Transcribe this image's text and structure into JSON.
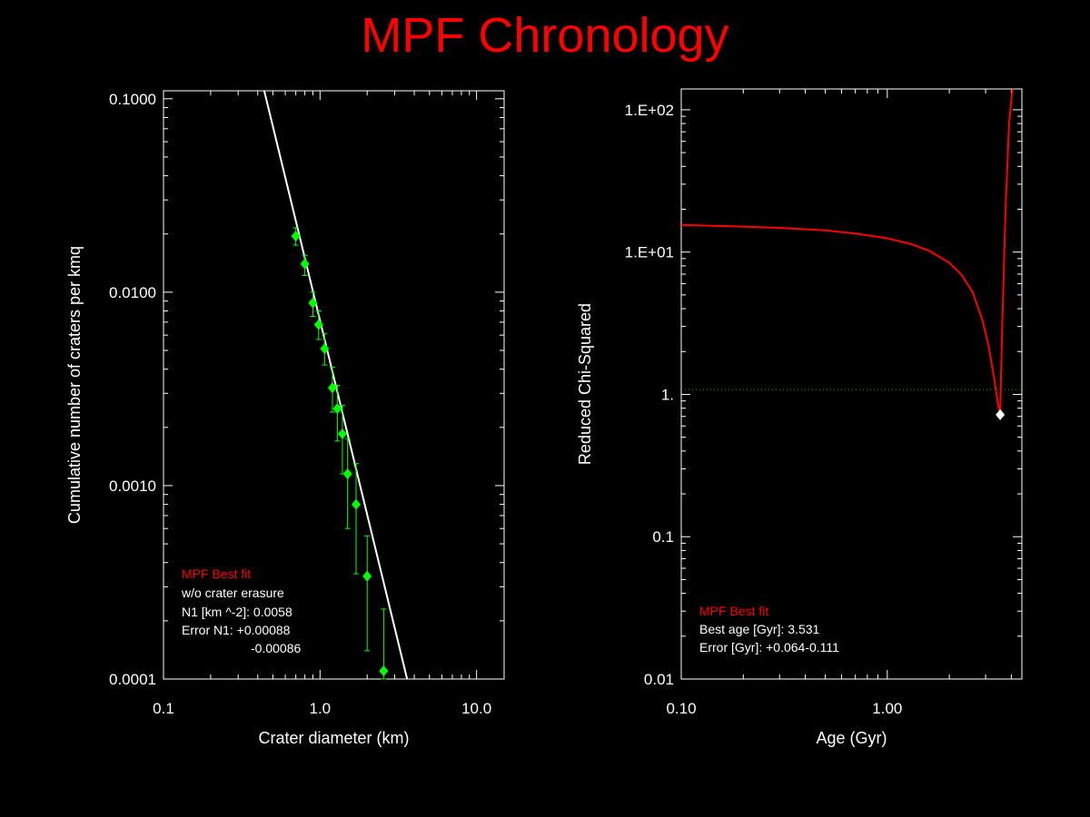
{
  "title": "MPF Chronology",
  "colors": {
    "background": "#000000",
    "title": "#ff0000",
    "axes": "#ffffff",
    "data_points": "#00ff00",
    "fit_curve": "#ffffff",
    "chi_curve": "#ff0000",
    "reference_line": "#00aa00",
    "best_fit_marker": "#ffffff",
    "label_highlight": "#ff0000"
  },
  "left_legend": {
    "title": "MPF Best fit",
    "line1": "w/o crater erasure",
    "line2": "N1 [km ^-2]: 0.0058",
    "line3": "Error N1: +0.00088",
    "line4": "-0.00086"
  },
  "right_legend": {
    "title": "MPF Best fit",
    "line1": "Best age [Gyr]: 3.531",
    "line2": "Error [Gyr]: +0.064-0.111"
  },
  "chart_data": [
    {
      "type": "scatter",
      "xlabel": "Crater diameter (km)",
      "ylabel": "Cumulative number of craters per kmq",
      "x_scale": "log",
      "y_scale": "log",
      "xlim": [
        0.1,
        15
      ],
      "ylim": [
        0.0001,
        0.11
      ],
      "x_ticks": [
        "0.1",
        "1.0",
        "10.0"
      ],
      "x_tick_values": [
        0.1,
        1,
        10
      ],
      "y_ticks": [
        "0.1000",
        "0.0100",
        "0.0010",
        "0.0001"
      ],
      "y_tick_values": [
        0.1,
        0.01,
        0.001,
        0.0001
      ],
      "series": [
        {
          "type": "scatter_errorbar",
          "points": [
            {
              "x": 0.7,
              "y": 0.0195,
              "lo": 0.0175,
              "hi": 0.0215
            },
            {
              "x": 0.8,
              "y": 0.014,
              "lo": 0.0122,
              "hi": 0.0155
            },
            {
              "x": 0.9,
              "y": 0.0088,
              "lo": 0.0075,
              "hi": 0.01
            },
            {
              "x": 0.98,
              "y": 0.0068,
              "lo": 0.0057,
              "hi": 0.008
            },
            {
              "x": 1.07,
              "y": 0.0051,
              "lo": 0.0042,
              "hi": 0.0061
            },
            {
              "x": 1.2,
              "y": 0.0032,
              "lo": 0.0024,
              "hi": 0.0041
            },
            {
              "x": 1.29,
              "y": 0.0025,
              "lo": 0.0017,
              "hi": 0.0033
            },
            {
              "x": 1.39,
              "y": 0.00185,
              "lo": 0.00115,
              "hi": 0.0026
            },
            {
              "x": 1.5,
              "y": 0.00115,
              "lo": 0.0006,
              "hi": 0.00175
            },
            {
              "x": 1.7,
              "y": 0.0008,
              "lo": 0.00035,
              "hi": 0.0013
            },
            {
              "x": 2.0,
              "y": 0.00034,
              "lo": 0.00014,
              "hi": 0.00055
            },
            {
              "x": 2.55,
              "y": 0.00011,
              "lo": 0.0001,
              "hi": 0.00023
            }
          ]
        },
        {
          "type": "line",
          "x": [
            0.44,
            3.6
          ],
          "y": [
            0.11,
            0.0001
          ]
        }
      ]
    },
    {
      "type": "line",
      "xlabel": "Age (Gyr)",
      "ylabel": "Reduced Chi-Squared",
      "x_scale": "log",
      "y_scale": "log",
      "xlim": [
        0.1,
        4.5
      ],
      "ylim": [
        0.01,
        140
      ],
      "x_ticks": [
        "0.10",
        "1.00"
      ],
      "x_tick_values": [
        0.1,
        1
      ],
      "y_ticks": [
        "1.E+02",
        "1.E+01",
        "1.",
        "0.1",
        "0.01"
      ],
      "y_tick_values": [
        100,
        10,
        1,
        0.1,
        0.01
      ],
      "reference_line_y": 1.08,
      "best_fit": {
        "x": 3.531,
        "y": 0.72
      },
      "series": [
        {
          "type": "line",
          "x": [
            0.1,
            0.2,
            0.3,
            0.5,
            0.7,
            1.0,
            1.3,
            1.6,
            2.0,
            2.3,
            2.6,
            2.9,
            3.1,
            3.3,
            3.45,
            3.531,
            3.6,
            3.75,
            3.9,
            4.05
          ],
          "y": [
            15.5,
            15.1,
            14.8,
            14.2,
            13.5,
            12.5,
            11.4,
            10.2,
            8.4,
            6.9,
            5.2,
            3.3,
            2.2,
            1.3,
            0.85,
            0.72,
            2.5,
            20,
            80,
            140
          ]
        }
      ]
    }
  ]
}
